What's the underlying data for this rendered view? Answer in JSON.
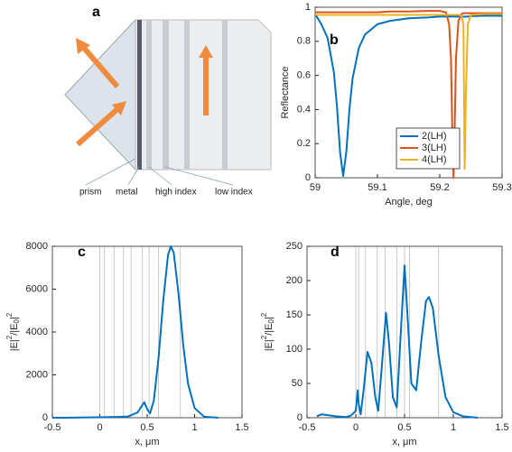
{
  "diagram": {
    "label": "a",
    "parts": [
      "prism",
      "metal",
      "high index",
      "low index"
    ]
  },
  "chart_data": [
    {
      "type": "line",
      "label": "b",
      "xlabel": "Angle, deg",
      "ylabel": "Reflectance",
      "x": [
        59,
        59.01,
        59.02,
        59.03,
        59.035,
        59.04,
        59.045,
        59.05,
        59.055,
        59.06,
        59.07,
        59.08,
        59.1,
        59.12,
        59.15,
        59.18,
        59.2,
        59.21,
        59.215,
        59.218,
        59.22,
        59.222,
        59.224,
        59.226,
        59.23,
        59.235,
        59.238,
        59.24,
        59.242,
        59.245,
        59.25,
        59.27,
        59.3
      ],
      "series": [
        {
          "name": "2(LH)",
          "color": "#0072bd",
          "values": [
            0.96,
            0.9,
            0.82,
            0.62,
            0.42,
            0.15,
            0.01,
            0.15,
            0.4,
            0.58,
            0.76,
            0.84,
            0.9,
            0.92,
            0.935,
            0.94,
            0.945,
            0.945,
            0.945,
            0.945,
            0.945,
            0.945,
            0.945,
            0.945,
            0.945,
            0.945,
            0.945,
            0.945,
            0.945,
            0.945,
            0.948,
            0.95,
            0.95
          ]
        },
        {
          "name": "3(LH)",
          "color": "#d95319",
          "values": [
            0.97,
            0.97,
            0.97,
            0.97,
            0.97,
            0.97,
            0.97,
            0.97,
            0.97,
            0.97,
            0.97,
            0.97,
            0.97,
            0.975,
            0.975,
            0.978,
            0.978,
            0.97,
            0.9,
            0.7,
            0.3,
            0.0,
            0.3,
            0.7,
            0.92,
            0.96,
            0.965,
            0.965,
            0.965,
            0.965,
            0.965,
            0.965,
            0.965
          ]
        },
        {
          "name": "4(LH)",
          "color": "#edb120",
          "values": [
            0.955,
            0.955,
            0.955,
            0.955,
            0.955,
            0.955,
            0.955,
            0.955,
            0.955,
            0.955,
            0.955,
            0.955,
            0.955,
            0.955,
            0.955,
            0.955,
            0.955,
            0.955,
            0.955,
            0.955,
            0.955,
            0.955,
            0.955,
            0.955,
            0.955,
            0.95,
            0.9,
            0.05,
            0.5,
            0.9,
            0.955,
            0.96,
            0.96
          ]
        }
      ],
      "xlim": [
        59,
        59.3
      ],
      "ylim": [
        0,
        1
      ],
      "xticks": [
        59,
        59.1,
        59.2,
        59.3
      ],
      "yticks": [
        0,
        0.2,
        0.4,
        0.6,
        0.8,
        1
      ],
      "legend": "lower right"
    },
    {
      "type": "line",
      "label": "c",
      "xlabel": "x, μm",
      "ylabel": [
        "|E|",
        "2",
        "/|E",
        "0",
        "|",
        "2"
      ],
      "x": [
        -0.5,
        -0.35,
        -0.2,
        0,
        0.1,
        0.2,
        0.3,
        0.4,
        0.45,
        0.47,
        0.5,
        0.53,
        0.57,
        0.62,
        0.67,
        0.72,
        0.75,
        0.78,
        0.83,
        0.88,
        0.93,
        1.0,
        1.1,
        1.25
      ],
      "series": [
        {
          "color": "#0072bd",
          "values": [
            0,
            0,
            10,
            20,
            30,
            40,
            60,
            250,
            600,
            720,
            400,
            200,
            800,
            2800,
            5500,
            7600,
            8000,
            7700,
            5800,
            3400,
            1600,
            450,
            50,
            0
          ]
        }
      ],
      "vlines": [
        0,
        0.05,
        0.15,
        0.25,
        0.33,
        0.45,
        0.52,
        0.62,
        0.85
      ],
      "xlim": [
        -0.5,
        1.5
      ],
      "ylim": [
        0,
        8000
      ],
      "xticks": [
        -0.5,
        0,
        0.5,
        1,
        1.5
      ],
      "yticks": [
        0,
        2000,
        4000,
        6000,
        8000
      ]
    },
    {
      "type": "line",
      "label": "d",
      "xlabel": "x, μm",
      "ylabel": [
        "|E|",
        "2",
        "/|E",
        "0",
        "|",
        "2"
      ],
      "x": [
        -0.4,
        -0.35,
        -0.3,
        -0.2,
        -0.1,
        -0.05,
        0,
        0.02,
        0.03,
        0.05,
        0.08,
        0.12,
        0.16,
        0.2,
        0.23,
        0.27,
        0.31,
        0.34,
        0.38,
        0.42,
        0.46,
        0.5,
        0.53,
        0.57,
        0.62,
        0.67,
        0.72,
        0.75,
        0.79,
        0.85,
        0.92,
        1.0,
        1.1,
        1.25
      ],
      "series": [
        {
          "color": "#0072bd",
          "values": [
            2,
            5,
            4,
            2,
            1,
            3,
            10,
            40,
            20,
            5,
            40,
            96,
            80,
            30,
            10,
            80,
            153,
            110,
            30,
            15,
            120,
            222,
            150,
            50,
            40,
            110,
            170,
            176,
            160,
            90,
            30,
            8,
            2,
            0
          ]
        }
      ],
      "vlines": [
        0,
        0.03,
        0.1,
        0.22,
        0.3,
        0.42,
        0.5,
        0.55,
        0.85
      ],
      "xlim": [
        -0.5,
        1.5
      ],
      "ylim": [
        0,
        250
      ],
      "xticks": [
        -0.5,
        0,
        0.5,
        1,
        1.5
      ],
      "yticks": [
        0,
        50,
        100,
        150,
        200,
        250
      ]
    }
  ]
}
